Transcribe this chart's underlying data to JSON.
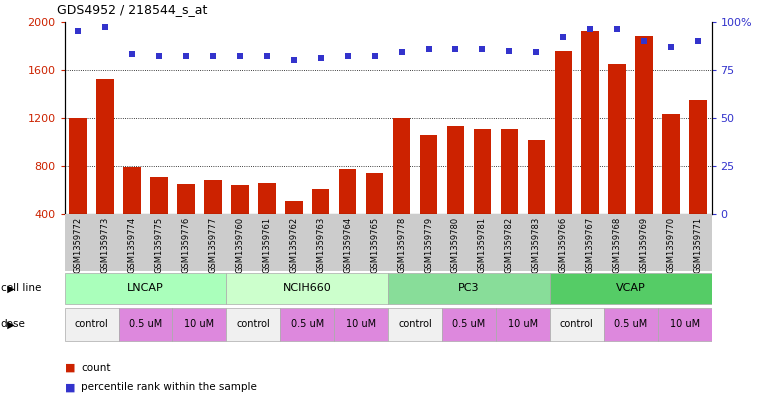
{
  "title": "GDS4952 / 218544_s_at",
  "samples": [
    "GSM1359772",
    "GSM1359773",
    "GSM1359774",
    "GSM1359775",
    "GSM1359776",
    "GSM1359777",
    "GSM1359760",
    "GSM1359761",
    "GSM1359762",
    "GSM1359763",
    "GSM1359764",
    "GSM1359765",
    "GSM1359778",
    "GSM1359779",
    "GSM1359780",
    "GSM1359781",
    "GSM1359782",
    "GSM1359783",
    "GSM1359766",
    "GSM1359767",
    "GSM1359768",
    "GSM1359769",
    "GSM1359770",
    "GSM1359771"
  ],
  "counts": [
    1200,
    1520,
    790,
    710,
    650,
    680,
    640,
    660,
    510,
    610,
    775,
    740,
    1200,
    1060,
    1130,
    1110,
    1110,
    1020,
    1760,
    1920,
    1650,
    1880,
    1230,
    1350
  ],
  "percentiles": [
    95,
    97,
    83,
    82,
    82,
    82,
    82,
    82,
    80,
    81,
    82,
    82,
    84,
    86,
    86,
    86,
    85,
    84,
    92,
    96,
    96,
    90,
    87,
    90
  ],
  "cell_groups": [
    {
      "name": "LNCAP",
      "start": 0,
      "end": 5,
      "color": "#aaffbb"
    },
    {
      "name": "NCIH660",
      "start": 6,
      "end": 11,
      "color": "#ccffcc"
    },
    {
      "name": "PC3",
      "start": 12,
      "end": 17,
      "color": "#88dd99"
    },
    {
      "name": "VCAP",
      "start": 18,
      "end": 23,
      "color": "#55cc66"
    }
  ],
  "dose_groups": [
    {
      "label": "control",
      "start": 0,
      "end": 1,
      "color": "#f0f0f0"
    },
    {
      "label": "0.5 uM",
      "start": 2,
      "end": 3,
      "color": "#dd88dd"
    },
    {
      "label": "10 uM",
      "start": 4,
      "end": 5,
      "color": "#dd88dd"
    },
    {
      "label": "control",
      "start": 6,
      "end": 7,
      "color": "#f0f0f0"
    },
    {
      "label": "0.5 uM",
      "start": 8,
      "end": 9,
      "color": "#dd88dd"
    },
    {
      "label": "10 uM",
      "start": 10,
      "end": 11,
      "color": "#dd88dd"
    },
    {
      "label": "control",
      "start": 12,
      "end": 13,
      "color": "#f0f0f0"
    },
    {
      "label": "0.5 uM",
      "start": 14,
      "end": 15,
      "color": "#dd88dd"
    },
    {
      "label": "10 uM",
      "start": 16,
      "end": 17,
      "color": "#dd88dd"
    },
    {
      "label": "control",
      "start": 18,
      "end": 19,
      "color": "#f0f0f0"
    },
    {
      "label": "0.5 uM",
      "start": 20,
      "end": 21,
      "color": "#dd88dd"
    },
    {
      "label": "10 uM",
      "start": 22,
      "end": 23,
      "color": "#dd88dd"
    }
  ],
  "ylim_left": [
    400,
    2000
  ],
  "ylim_right": [
    0,
    100
  ],
  "yticks_left": [
    400,
    800,
    1200,
    1600,
    2000
  ],
  "yticks_right": [
    0,
    25,
    50,
    75,
    100
  ],
  "bar_color": "#cc2200",
  "dot_color": "#3333cc",
  "bg_color": "#ffffff",
  "left_tick_color": "#cc2200",
  "right_tick_color": "#3333cc",
  "grid_yticks": [
    800,
    1200,
    1600
  ],
  "label_area_color": "#cccccc"
}
